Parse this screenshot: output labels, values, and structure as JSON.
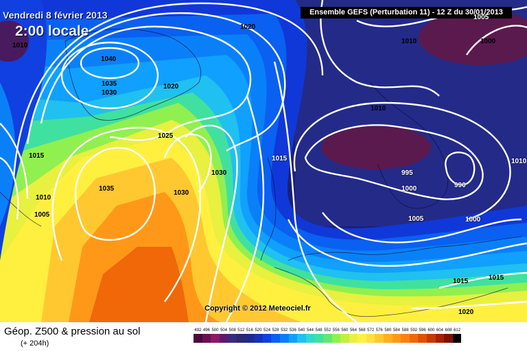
{
  "header": {
    "date_title": "Vendredi 8 février 2013",
    "time_title": "2:00 locale",
    "ensemble_label": "Ensemble GEFS (Perturbation 11)  -  12 Z du 30/01/2013"
  },
  "copyright": "Copyright © 2012 Meteociel.fr",
  "footer": {
    "title": "Géop. Z500 & pression au sol",
    "subtitle": "(+ 204h)"
  },
  "legend": {
    "values": [
      "492",
      "496",
      "500",
      "504",
      "508",
      "512",
      "516",
      "520",
      "524",
      "528",
      "532",
      "536",
      "540",
      "544",
      "548",
      "552",
      "556",
      "560",
      "564",
      "568",
      "572",
      "576",
      "580",
      "584",
      "588",
      "592",
      "596",
      "600",
      "604",
      "608",
      "612"
    ],
    "colors": [
      "#4a0a3a",
      "#6a1050",
      "#8a1a66",
      "#5a1a6e",
      "#3a2a7a",
      "#2a2a6e",
      "#1e2a8a",
      "#1830b4",
      "#1040e0",
      "#0a60f0",
      "#0a80f8",
      "#10a0ff",
      "#20c0f0",
      "#30d8d0",
      "#40e0a0",
      "#60e870",
      "#90f050",
      "#c0f040",
      "#e8f040",
      "#fff040",
      "#ffe040",
      "#ffc830",
      "#ffb020",
      "#ff9818",
      "#ff8010",
      "#f06808",
      "#e05000",
      "#c83800",
      "#a82000",
      "#801000",
      "#000000"
    ]
  },
  "pressure_labels": [
    {
      "text": "1020"
    },
    {
      "text": "1010"
    },
    {
      "text": "1040"
    },
    {
      "text": "1035"
    },
    {
      "text": "1030"
    },
    {
      "text": "1020"
    },
    {
      "text": "1010"
    },
    {
      "text": "1000"
    },
    {
      "text": "1010"
    },
    {
      "text": "1025"
    },
    {
      "text": "1015"
    },
    {
      "text": "1035"
    },
    {
      "text": "1030"
    },
    {
      "text": "1030"
    },
    {
      "text": "1010"
    },
    {
      "text": "1005"
    },
    {
      "text": "1015"
    },
    {
      "text": "995"
    },
    {
      "text": "990"
    },
    {
      "text": "1000"
    },
    {
      "text": "1010"
    },
    {
      "text": "1005"
    },
    {
      "text": "1000"
    },
    {
      "text": "1015"
    },
    {
      "text": "1015"
    },
    {
      "text": "1020"
    },
    {
      "text": "1005"
    }
  ]
}
